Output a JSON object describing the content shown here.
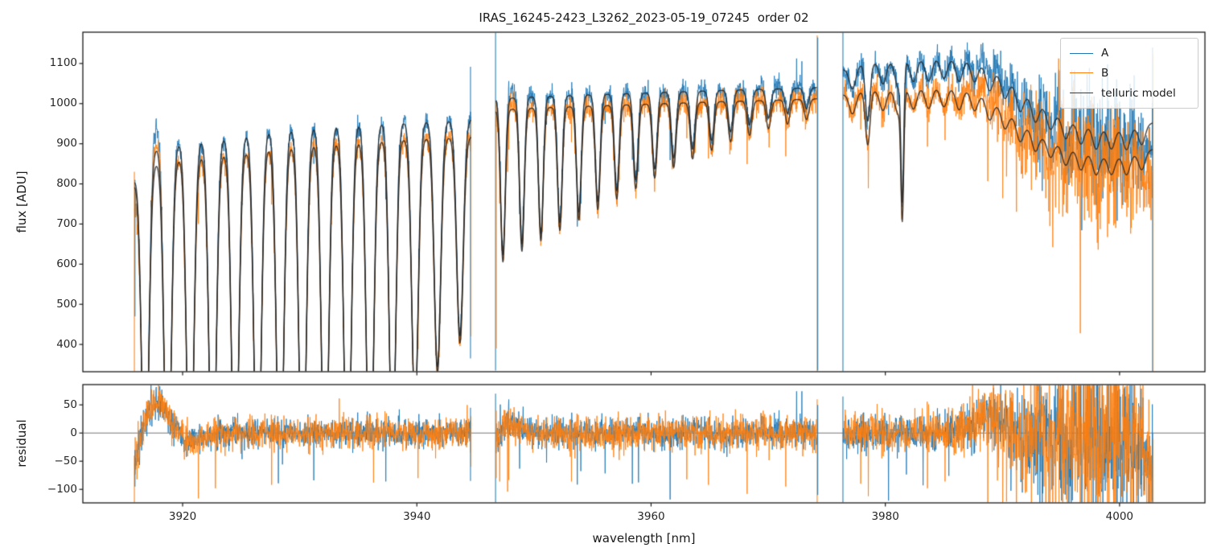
{
  "chart_data": {
    "type": "line",
    "title": "IRAS_16245-2423_L3262_2023-05-19_07245  order 02",
    "xlabel": "wavelength [nm]",
    "xlim": [
      3911.48,
      4007.29
    ],
    "xticks": [
      3920,
      3940,
      3960,
      3980,
      4000
    ],
    "xtick_labels": [
      "3920",
      "3940",
      "3960",
      "3980",
      "4000"
    ],
    "grid": false,
    "legend_position": "upper right",
    "panels": [
      {
        "name": "flux",
        "ylabel": "flux [ADU]",
        "ylim": [
          332,
          1178
        ],
        "yticks": [
          400,
          500,
          600,
          700,
          800,
          900,
          1000,
          1100
        ],
        "ytick_labels": [
          "400",
          "500",
          "600",
          "700",
          "800",
          "900",
          "1000",
          "1100"
        ]
      },
      {
        "name": "residual",
        "ylabel": "residual",
        "ylim": [
          -124,
          86
        ],
        "yticks": [
          -100,
          -50,
          0,
          50
        ],
        "ytick_labels": [
          "−100",
          "−50",
          "0",
          "50"
        ],
        "zero_line": 0
      }
    ],
    "legend": {
      "entries": [
        {
          "label": "A",
          "color": "#1f77b4"
        },
        {
          "label": "B",
          "color": "#ff7f0e"
        },
        {
          "label": "telluric model",
          "color": "#3d3d3d"
        }
      ]
    },
    "series_colors": {
      "A": "#1f77b4",
      "B": "#ff7f0e",
      "model": "#262626"
    },
    "noise_seed": 20230519,
    "segments": [
      {
        "x_range": [
          3915.9,
          3944.65
        ],
        "continuum_A": [
          [
            3915.9,
            812
          ],
          [
            3916.6,
            862
          ],
          [
            3917.5,
            890
          ],
          [
            3919,
            901
          ],
          [
            3921,
            908
          ],
          [
            3923,
            916
          ],
          [
            3925,
            923
          ],
          [
            3927,
            933
          ],
          [
            3929,
            939
          ],
          [
            3931,
            945
          ],
          [
            3933,
            949
          ],
          [
            3935,
            952
          ],
          [
            3937,
            953
          ],
          [
            3939,
            954
          ],
          [
            3941,
            956
          ],
          [
            3943,
            958
          ],
          [
            3944.65,
            961
          ]
        ],
        "continuum_B": [
          [
            3915.9,
            800
          ],
          [
            3916.6,
            830
          ],
          [
            3917.5,
            852
          ],
          [
            3919,
            862
          ],
          [
            3921,
            868
          ],
          [
            3923,
            875
          ],
          [
            3925,
            881
          ],
          [
            3927,
            889
          ],
          [
            3929,
            895
          ],
          [
            3931,
            901
          ],
          [
            3933,
            905
          ],
          [
            3935,
            908
          ],
          [
            3937,
            910
          ],
          [
            3939,
            912
          ],
          [
            3941,
            914
          ],
          [
            3943,
            916
          ],
          [
            3944.65,
            918
          ]
        ],
        "lines": [
          [
            3916.8,
            1,
            0.3
          ],
          [
            3918.72,
            1,
            0.3
          ],
          [
            3920.64,
            1,
            0.3
          ],
          [
            3922.56,
            1,
            0.3
          ],
          [
            3924.48,
            1,
            0.3
          ],
          [
            3926.4,
            1,
            0.3
          ],
          [
            3928.32,
            1,
            0.3
          ],
          [
            3930.24,
            1,
            0.3
          ],
          [
            3932.16,
            1,
            0.3
          ],
          [
            3934.08,
            1,
            0.3
          ],
          [
            3936.0,
            1,
            0.3
          ],
          [
            3937.92,
            0.88,
            0.28
          ],
          [
            3939.84,
            0.75,
            0.28
          ],
          [
            3941.76,
            0.64,
            0.28
          ],
          [
            3943.68,
            0.56,
            0.28
          ]
        ],
        "sigma": [
          [
            3915.9,
            22
          ],
          [
            3917,
            19
          ],
          [
            3918,
            17
          ],
          [
            3920,
            15
          ],
          [
            3930,
            14
          ],
          [
            3944.65,
            14
          ]
        ],
        "bias": [
          [
            3915.9,
            -55
          ],
          [
            3916.2,
            -30
          ],
          [
            3916.7,
            10
          ],
          [
            3917.3,
            48
          ],
          [
            3917.9,
            58
          ],
          [
            3918.5,
            38
          ],
          [
            3919.3,
            10
          ],
          [
            3920.1,
            -10
          ],
          [
            3921,
            -18
          ],
          [
            3922,
            -8
          ],
          [
            3923,
            0
          ],
          [
            3944.65,
            0
          ]
        ]
      },
      {
        "x_range": [
          3946.75,
          3974.2
        ],
        "continuum_A": [
          [
            3946.75,
            1012
          ],
          [
            3950,
            1017
          ],
          [
            3954,
            1021
          ],
          [
            3958,
            1025
          ],
          [
            3962,
            1029
          ],
          [
            3966,
            1033
          ],
          [
            3970,
            1036
          ],
          [
            3974.2,
            1040
          ]
        ],
        "continuum_B": [
          [
            3946.75,
            984
          ],
          [
            3950,
            989
          ],
          [
            3954,
            993
          ],
          [
            3958,
            997
          ],
          [
            3962,
            1001
          ],
          [
            3966,
            1005
          ],
          [
            3970,
            1008
          ],
          [
            3974.2,
            1012
          ]
        ],
        "lines": [
          [
            3947.35,
            0.385,
            0.2
          ],
          [
            3948.97,
            0.36,
            0.2
          ],
          [
            3950.59,
            0.335,
            0.2
          ],
          [
            3952.21,
            0.31,
            0.2
          ],
          [
            3953.83,
            0.285,
            0.2
          ],
          [
            3955.45,
            0.26,
            0.2
          ],
          [
            3957.07,
            0.235,
            0.2
          ],
          [
            3958.69,
            0.21,
            0.2
          ],
          [
            3960.31,
            0.185,
            0.2
          ],
          [
            3961.93,
            0.16,
            0.2
          ],
          [
            3963.55,
            0.14,
            0.2
          ],
          [
            3965.17,
            0.12,
            0.2
          ],
          [
            3966.79,
            0.1,
            0.2
          ],
          [
            3968.41,
            0.085,
            0.2
          ],
          [
            3970.03,
            0.07,
            0.2
          ],
          [
            3971.65,
            0.06,
            0.2
          ],
          [
            3973.27,
            0.05,
            0.2
          ]
        ],
        "sigma": [
          [
            3946.75,
            17
          ],
          [
            3949,
            15
          ],
          [
            3974.2,
            15
          ]
        ],
        "bias": [
          [
            3946.75,
            -10
          ],
          [
            3947.3,
            8
          ],
          [
            3948,
            20
          ],
          [
            3949,
            10
          ],
          [
            3950.2,
            0
          ],
          [
            3974.2,
            0
          ]
        ]
      },
      {
        "x_range": [
          3976.4,
          4002.84
        ],
        "continuum_A": [
          [
            3976.4,
            1085
          ],
          [
            3978,
            1098
          ],
          [
            3980,
            1105
          ],
          [
            3982,
            1110
          ],
          [
            3984,
            1113
          ],
          [
            3986,
            1112
          ],
          [
            3987.5,
            1105
          ],
          [
            3989,
            1085
          ],
          [
            3990.5,
            1055
          ],
          [
            3992,
            1020
          ],
          [
            3993.5,
            990
          ],
          [
            3995,
            965
          ],
          [
            3996.5,
            948
          ],
          [
            3998,
            938
          ],
          [
            3999.5,
            933
          ],
          [
            4001,
            938
          ],
          [
            4002,
            946
          ],
          [
            4002.84,
            952
          ]
        ],
        "continuum_B": [
          [
            3976.4,
            1022
          ],
          [
            3978,
            1030
          ],
          [
            3980,
            1035
          ],
          [
            3982,
            1038
          ],
          [
            3984,
            1040
          ],
          [
            3986,
            1038
          ],
          [
            3987.5,
            1030
          ],
          [
            3989,
            1008
          ],
          [
            3990.5,
            975
          ],
          [
            3992,
            942
          ],
          [
            3993.5,
            915
          ],
          [
            3995,
            895
          ],
          [
            3996.5,
            880
          ],
          [
            3998,
            870
          ],
          [
            3999.5,
            866
          ],
          [
            4001,
            872
          ],
          [
            4002,
            880
          ],
          [
            4002.84,
            886
          ]
        ],
        "lines": [
          [
            3977.2,
            0.05,
            0.28
          ],
          [
            3978.5,
            0.13,
            0.2
          ],
          [
            3979.8,
            0.05,
            0.28
          ],
          [
            3981.1,
            0.06,
            0.28
          ],
          [
            3981.45,
            0.3,
            0.12
          ],
          [
            3982.4,
            0.05,
            0.28
          ],
          [
            3983.7,
            0.05,
            0.28
          ],
          [
            3985.0,
            0.045,
            0.28
          ],
          [
            3986.3,
            0.05,
            0.28
          ],
          [
            3987.6,
            0.045,
            0.28
          ],
          [
            3988.9,
            0.05,
            0.28
          ],
          [
            3990.2,
            0.045,
            0.28
          ],
          [
            3991.5,
            0.05,
            0.28
          ],
          [
            3992.8,
            0.05,
            0.28
          ],
          [
            3994.1,
            0.045,
            0.28
          ],
          [
            3995.4,
            0.05,
            0.28
          ],
          [
            3996.7,
            0.05,
            0.28
          ],
          [
            3998.0,
            0.055,
            0.28
          ],
          [
            3999.3,
            0.05,
            0.28
          ],
          [
            4000.6,
            0.055,
            0.28
          ],
          [
            4001.9,
            0.05,
            0.28
          ]
        ],
        "sigma": [
          [
            3976.4,
            18
          ],
          [
            3984,
            17
          ],
          [
            3987,
            20
          ],
          [
            3989,
            26
          ],
          [
            3991,
            38
          ],
          [
            3993,
            58
          ],
          [
            3995,
            78
          ],
          [
            3997,
            88
          ],
          [
            3999,
            88
          ],
          [
            4000.5,
            72
          ],
          [
            4001.5,
            58
          ],
          [
            4002.84,
            45
          ]
        ],
        "bias": [
          [
            3976.4,
            0
          ],
          [
            3986,
            2
          ],
          [
            3987.5,
            14
          ],
          [
            3988.6,
            30
          ],
          [
            3989.6,
            22
          ],
          [
            3990.6,
            5
          ],
          [
            3992,
            -5
          ],
          [
            3996,
            0
          ],
          [
            4001.5,
            -10
          ],
          [
            4002.3,
            -40
          ],
          [
            4002.84,
            -65
          ]
        ],
        "heavy_tail": {
          "B": {
            "start": 3988,
            "p": 0.05,
            "mean": 70,
            "max": 240
          },
          "A": {
            "start": 3990,
            "p": 0.03,
            "mean": 45,
            "max": 160
          }
        }
      }
    ],
    "edge_lines": [
      {
        "x": 3915.88,
        "series": "B",
        "flux": [
          830,
          300
        ],
        "resid": [
          -40,
          -130
        ]
      },
      {
        "x": 3915.93,
        "series": "A",
        "flux": [
          810,
          470
        ],
        "resid": [
          -30,
          -95
        ]
      },
      {
        "x": 3944.58,
        "series": "A",
        "flux": [
          1092,
          365
        ],
        "resid": [
          45,
          -85
        ]
      },
      {
        "x": 3944.62,
        "series": "B",
        "flux": [
          960,
          420
        ],
        "resid": [
          30,
          -60
        ]
      },
      {
        "x": 3946.72,
        "series": "A",
        "flux": [
          1180,
          335
        ],
        "resid": [
          70,
          -130
        ]
      },
      {
        "x": 3946.78,
        "series": "B",
        "flux": [
          1005,
          390
        ],
        "resid": [
          40,
          -80
        ]
      },
      {
        "x": 3974.18,
        "series": "B",
        "flux": [
          1170,
          330
        ],
        "resid": [
          60,
          -130
        ]
      },
      {
        "x": 3974.23,
        "series": "A",
        "flux": [
          1165,
          335
        ],
        "resid": [
          50,
          -110
        ]
      },
      {
        "x": 3976.38,
        "series": "A",
        "flux": [
          1180,
          330
        ],
        "resid": [
          65,
          -130
        ]
      },
      {
        "x": 4002.82,
        "series": "A",
        "flux": [
          1140,
          330
        ],
        "resid": [
          0,
          -130
        ]
      },
      {
        "x": 4002.86,
        "series": "B",
        "flux": [
          1125,
          330
        ],
        "resid": [
          -10,
          -130
        ]
      }
    ],
    "residual_spikes": [
      {
        "x": 3921.35,
        "series": "B",
        "v": -116
      },
      {
        "x": 3922.8,
        "series": "B",
        "v": -98
      },
      {
        "x": 3927.6,
        "series": "B",
        "v": -92
      },
      {
        "x": 3931.2,
        "series": "A",
        "v": -84
      },
      {
        "x": 3936.3,
        "series": "B",
        "v": -88
      },
      {
        "x": 3940.1,
        "series": "B",
        "v": -80
      },
      {
        "x": 3947.75,
        "series": "B",
        "v": -104
      },
      {
        "x": 3953.2,
        "series": "B",
        "v": -86
      },
      {
        "x": 3958.4,
        "series": "A",
        "v": -90
      },
      {
        "x": 3961.62,
        "series": "A",
        "v": -118
      },
      {
        "x": 3964.9,
        "series": "B",
        "v": -92
      },
      {
        "x": 3968.2,
        "series": "B",
        "v": -108
      },
      {
        "x": 3971.5,
        "series": "B",
        "v": -95
      },
      {
        "x": 3977.9,
        "series": "B",
        "v": -90
      },
      {
        "x": 3978.55,
        "series": "B",
        "v": -112
      },
      {
        "x": 3980.28,
        "series": "A",
        "v": -120
      },
      {
        "x": 3983.6,
        "series": "B",
        "v": -98
      },
      {
        "x": 3985.1,
        "series": "B",
        "v": -86
      }
    ]
  }
}
